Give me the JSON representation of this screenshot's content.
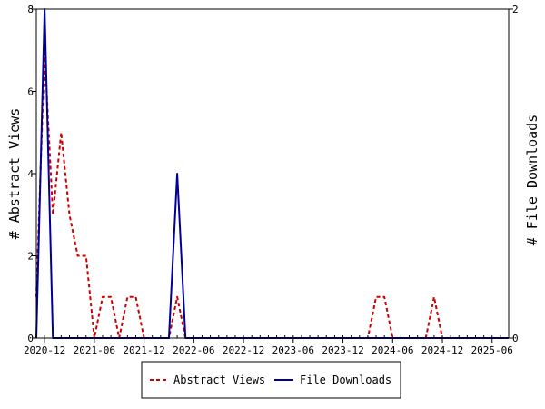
{
  "chart_data": {
    "type": "line",
    "x_tick_labels": [
      "2020-12",
      "2021-06",
      "2021-12",
      "2022-06",
      "2022-12",
      "2023-06",
      "2023-12",
      "2024-06",
      "2024-12",
      "2025-06"
    ],
    "y_left": {
      "label": "# Abstract Views",
      "ticks": [
        "0",
        "2",
        "4",
        "6",
        "8"
      ],
      "ylim": [
        0,
        8
      ]
    },
    "y_right": {
      "label": "# File Downloads",
      "ticks": [
        "0",
        "2"
      ],
      "ylim": [
        0,
        2
      ]
    },
    "series": [
      {
        "name": "Abstract Views",
        "axis": "left",
        "color": "#cc0000",
        "style": "dashed",
        "points": [
          [
            "2020-11",
            1
          ],
          [
            "2020-12",
            7
          ],
          [
            "2021-01",
            3
          ],
          [
            "2021-02",
            5
          ],
          [
            "2021-03",
            3
          ],
          [
            "2021-04",
            2
          ],
          [
            "2021-05",
            2
          ],
          [
            "2021-06",
            0
          ],
          [
            "2021-07",
            1
          ],
          [
            "2021-08",
            1
          ],
          [
            "2021-09",
            0
          ],
          [
            "2021-10",
            1
          ],
          [
            "2021-11",
            1
          ],
          [
            "2021-12",
            0
          ],
          [
            "2022-01",
            0
          ],
          [
            "2022-02",
            0
          ],
          [
            "2022-03",
            0
          ],
          [
            "2022-04",
            1
          ],
          [
            "2022-05",
            0
          ],
          [
            "2024-03",
            0
          ],
          [
            "2024-04",
            1
          ],
          [
            "2024-05",
            1
          ],
          [
            "2024-06",
            0
          ],
          [
            "2024-10",
            0
          ],
          [
            "2024-11",
            1
          ],
          [
            "2024-12",
            0
          ],
          [
            "2025-08",
            0
          ]
        ]
      },
      {
        "name": "File Downloads",
        "axis": "right",
        "color": "#000099",
        "style": "solid",
        "points": [
          [
            "2020-11",
            0
          ],
          [
            "2020-12",
            2
          ],
          [
            "2021-01",
            0
          ],
          [
            "2021-02",
            0
          ],
          [
            "2022-03",
            0
          ],
          [
            "2022-04",
            1
          ],
          [
            "2022-05",
            0
          ],
          [
            "2025-08",
            0
          ]
        ]
      }
    ],
    "legend": {
      "placement": "bottom-center"
    },
    "grid": false
  }
}
